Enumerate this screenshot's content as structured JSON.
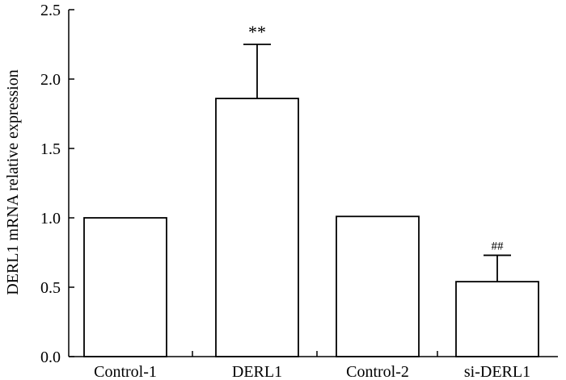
{
  "chart_data": {
    "type": "bar",
    "title": "",
    "xlabel": "",
    "ylabel": "DERL1 mRNA relative expression",
    "ylim": [
      0,
      2.5
    ],
    "yticks": [
      "0.0",
      "0.5",
      "1.0",
      "1.5",
      "2.0",
      "2.5"
    ],
    "categories": [
      "Control-1",
      "DERL1",
      "Control-2",
      "si-DERL1"
    ],
    "values": [
      1.0,
      1.86,
      1.01,
      0.54
    ],
    "errors": [
      null,
      0.39,
      null,
      0.19
    ],
    "annotations": [
      "",
      "**",
      "",
      "##"
    ],
    "grid": false,
    "legend": "none"
  }
}
